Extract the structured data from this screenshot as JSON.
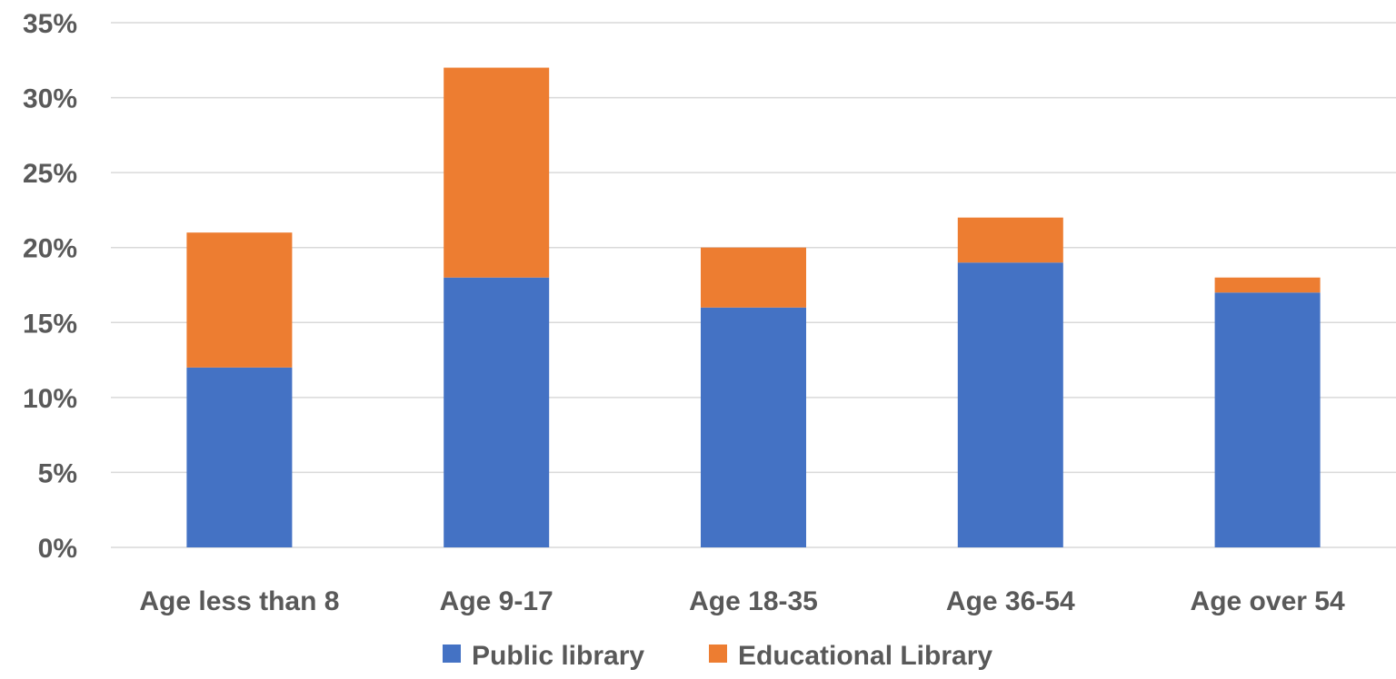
{
  "chart_data": {
    "type": "bar",
    "stacked": true,
    "categories": [
      "Age less than 8",
      "Age 9-17",
      "Age 18-35",
      "Age 36-54",
      "Age over 54"
    ],
    "series": [
      {
        "name": "Public library",
        "color": "#4472C4",
        "values": [
          12,
          18,
          16,
          19,
          17
        ]
      },
      {
        "name": "Educational Library",
        "color": "#ED7D31",
        "values": [
          9,
          14,
          4,
          3,
          1
        ]
      }
    ],
    "y_ticks": [
      "0%",
      "5%",
      "10%",
      "15%",
      "20%",
      "25%",
      "30%",
      "35%"
    ],
    "ylim": [
      0,
      35
    ],
    "grid": true,
    "legend_position": "bottom"
  }
}
